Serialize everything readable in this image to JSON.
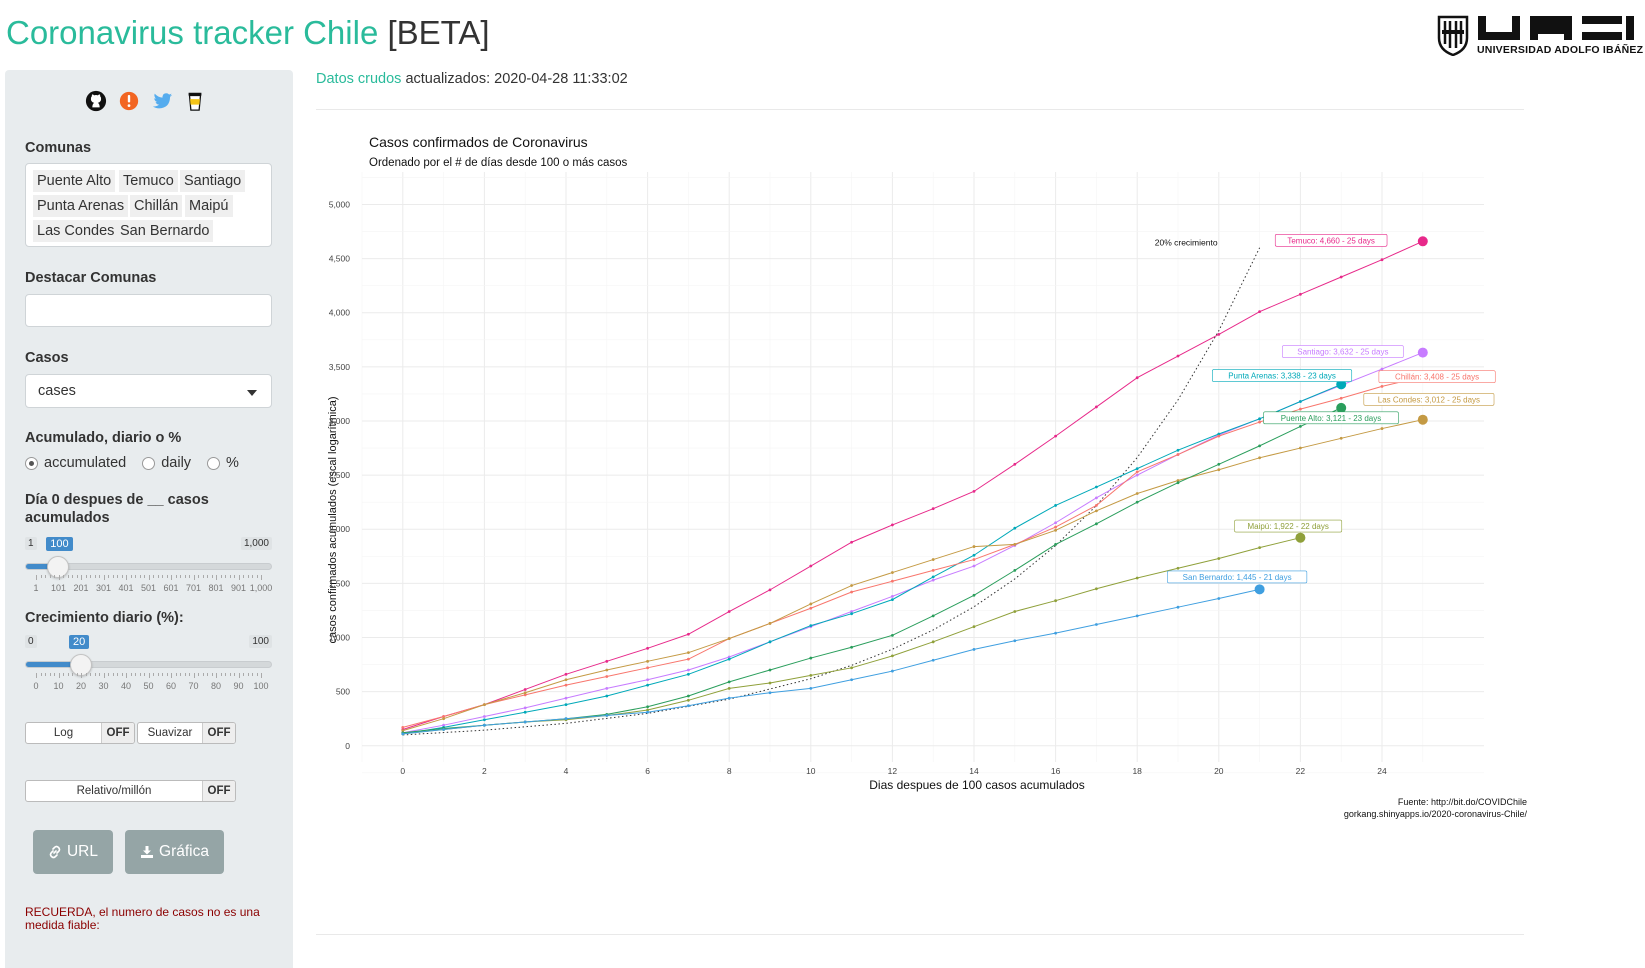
{
  "header": {
    "title_main": "Coronavirus tracker Chile",
    "title_beta": "[BETA]",
    "logo_text": "UNIVERSIDAD ADOLFO IBÁÑEZ"
  },
  "sidebar": {
    "icons": [
      "github-icon",
      "alert-icon",
      "twitter-icon",
      "coffee-icon"
    ],
    "comunas_label": "Comunas",
    "comunas_tags": [
      "Puente Alto",
      "Temuco",
      "Santiago",
      "Punta Arenas",
      "Chillán",
      "Maipú",
      "Las Condes",
      "San Bernardo"
    ],
    "destacar_label": "Destacar Comunas",
    "destacar_value": "",
    "casos_label": "Casos",
    "casos_value": "cases",
    "acumulado_label": "Acumulado, diario o %",
    "radio_options": [
      "accumulated",
      "daily",
      "%"
    ],
    "radio_selected": "accumulated",
    "dia0_label_1": "Día 0 despues de __ casos",
    "dia0_label_2": "acumulados",
    "dia0_slider": {
      "min": "1",
      "max": "1,000",
      "value": "100",
      "fraction": 0.099,
      "tick_labels": [
        "1",
        "101",
        "201",
        "301",
        "401",
        "501",
        "601",
        "701",
        "801",
        "901",
        "1,000"
      ]
    },
    "crec_label": "Crecimiento diario (%):",
    "crec_slider": {
      "min": "0",
      "max": "100",
      "value": "20",
      "fraction": 0.2,
      "tick_labels": [
        "0",
        "10",
        "20",
        "30",
        "40",
        "50",
        "60",
        "70",
        "80",
        "90",
        "100"
      ]
    },
    "toggle_log": {
      "label": "Log",
      "state": "OFF"
    },
    "toggle_suavizar": {
      "label": "Suavizar",
      "state": "OFF"
    },
    "toggle_relativo": {
      "label": "Relativo/millón",
      "state": "OFF"
    },
    "url_button": "URL",
    "grafica_button": "Gráfica",
    "reminder": "RECUERDA, el numero de casos no es una medida fiable:"
  },
  "main": {
    "updated_link": "Datos crudos",
    "updated_text": "actualizados: 2020-04-28 11:33:02"
  },
  "chart_data": {
    "type": "line",
    "title": "Casos confirmados de Coronavirus",
    "subtitle": "Ordenado por el # de días desde 100 o más casos",
    "xlabel": "Dias despues de 100 casos acumulados",
    "ylabel": "casos confirmados acumulados (escal logarítmica)",
    "xlim": [
      -1,
      26.5
    ],
    "ylim": [
      -150,
      5300
    ],
    "x_ticks": [
      0,
      2,
      4,
      6,
      8,
      10,
      12,
      14,
      16,
      18,
      20,
      22,
      24
    ],
    "y_ticks": [
      0,
      500,
      1000,
      1500,
      2000,
      2500,
      3000,
      3500,
      4000,
      4500,
      5000
    ],
    "y_tick_labels": [
      "0",
      "500",
      "1,000",
      "1,500",
      "2,000",
      "2,500",
      "3,000",
      "3,500",
      "4,000",
      "4,500",
      "5,000"
    ],
    "grid": true,
    "legend": "direct labels at line ends",
    "series": [
      {
        "name": "Temuco",
        "color": "#e7298a",
        "label": "Temuco: 4,660 - 25 days",
        "values": [
          150,
          270,
          380,
          520,
          660,
          780,
          900,
          1030,
          1240,
          1440,
          1660,
          1880,
          2040,
          2190,
          2350,
          2600,
          2860,
          3130,
          3400,
          3600,
          3800,
          4010,
          4170,
          4330,
          4490,
          4660
        ]
      },
      {
        "name": "Santiago",
        "color": "#c77cff",
        "label": "Santiago: 3,632 - 25 days",
        "values": [
          120,
          190,
          270,
          350,
          440,
          530,
          610,
          700,
          820,
          960,
          1100,
          1240,
          1380,
          1530,
          1660,
          1850,
          2060,
          2290,
          2500,
          2690,
          2870,
          3020,
          3180,
          3330,
          3480,
          3632
        ]
      },
      {
        "name": "Punta Arenas",
        "color": "#00a9b9",
        "label": "Punta Arenas: 3,338 - 23 days",
        "values": [
          110,
          170,
          240,
          310,
          380,
          460,
          560,
          660,
          800,
          960,
          1110,
          1220,
          1350,
          1560,
          1760,
          2010,
          2220,
          2390,
          2560,
          2730,
          2880,
          3020,
          3180,
          3338
        ]
      },
      {
        "name": "Chillán",
        "color": "#f8766d",
        "label": "Chillán: 3,408 - 25 days",
        "values": [
          170,
          270,
          380,
          470,
          560,
          640,
          720,
          800,
          990,
          1130,
          1270,
          1420,
          1520,
          1620,
          1720,
          1860,
          2020,
          2220,
          2530,
          2690,
          2860,
          2990,
          3110,
          3210,
          3320,
          3408
        ]
      },
      {
        "name": "Las Condes",
        "color": "#c49a44",
        "label": "Las Condes: 3,012 - 25 days",
        "values": [
          140,
          250,
          380,
          490,
          610,
          700,
          780,
          860,
          990,
          1130,
          1310,
          1480,
          1600,
          1720,
          1840,
          1860,
          1990,
          2170,
          2330,
          2450,
          2550,
          2660,
          2750,
          2840,
          2930,
          3012
        ]
      },
      {
        "name": "Puente Alto",
        "color": "#2a9e5c",
        "label": "Puente Alto: 3,121 - 23 days",
        "values": [
          120,
          160,
          190,
          220,
          250,
          290,
          360,
          460,
          590,
          700,
          810,
          910,
          1020,
          1200,
          1390,
          1620,
          1860,
          2050,
          2250,
          2430,
          2600,
          2770,
          2950,
          3121
        ]
      },
      {
        "name": "Maipú",
        "color": "#8fa03a",
        "label": "Maipú: 1,922 - 22 days",
        "values": [
          110,
          150,
          190,
          220,
          240,
          280,
          330,
          420,
          530,
          580,
          650,
          720,
          830,
          960,
          1100,
          1240,
          1340,
          1450,
          1550,
          1640,
          1730,
          1830,
          1922
        ]
      },
      {
        "name": "San Bernardo",
        "color": "#3f9fe0",
        "label": "San Bernardo: 1,445 - 21 days",
        "values": [
          110,
          150,
          190,
          220,
          250,
          280,
          310,
          370,
          440,
          490,
          530,
          610,
          690,
          790,
          890,
          970,
          1040,
          1120,
          1200,
          1280,
          1360,
          1445
        ]
      }
    ],
    "reference_line": {
      "label": "20% crecimiento",
      "x": [
        0,
        2,
        4,
        6,
        8,
        10,
        11,
        12,
        13,
        14,
        15,
        16,
        17,
        18,
        19,
        20,
        21
      ],
      "values": [
        100,
        144,
        207,
        299,
        430,
        619,
        743,
        892,
        1070,
        1284,
        1541,
        1849,
        2219,
        2662,
        3195,
        3834,
        4600
      ]
    },
    "source_line_1": "Fuente: http://bit.do/COVIDChile",
    "source_line_2": "gorkang.shinyapps.io/2020-coronavirus-Chile/"
  }
}
